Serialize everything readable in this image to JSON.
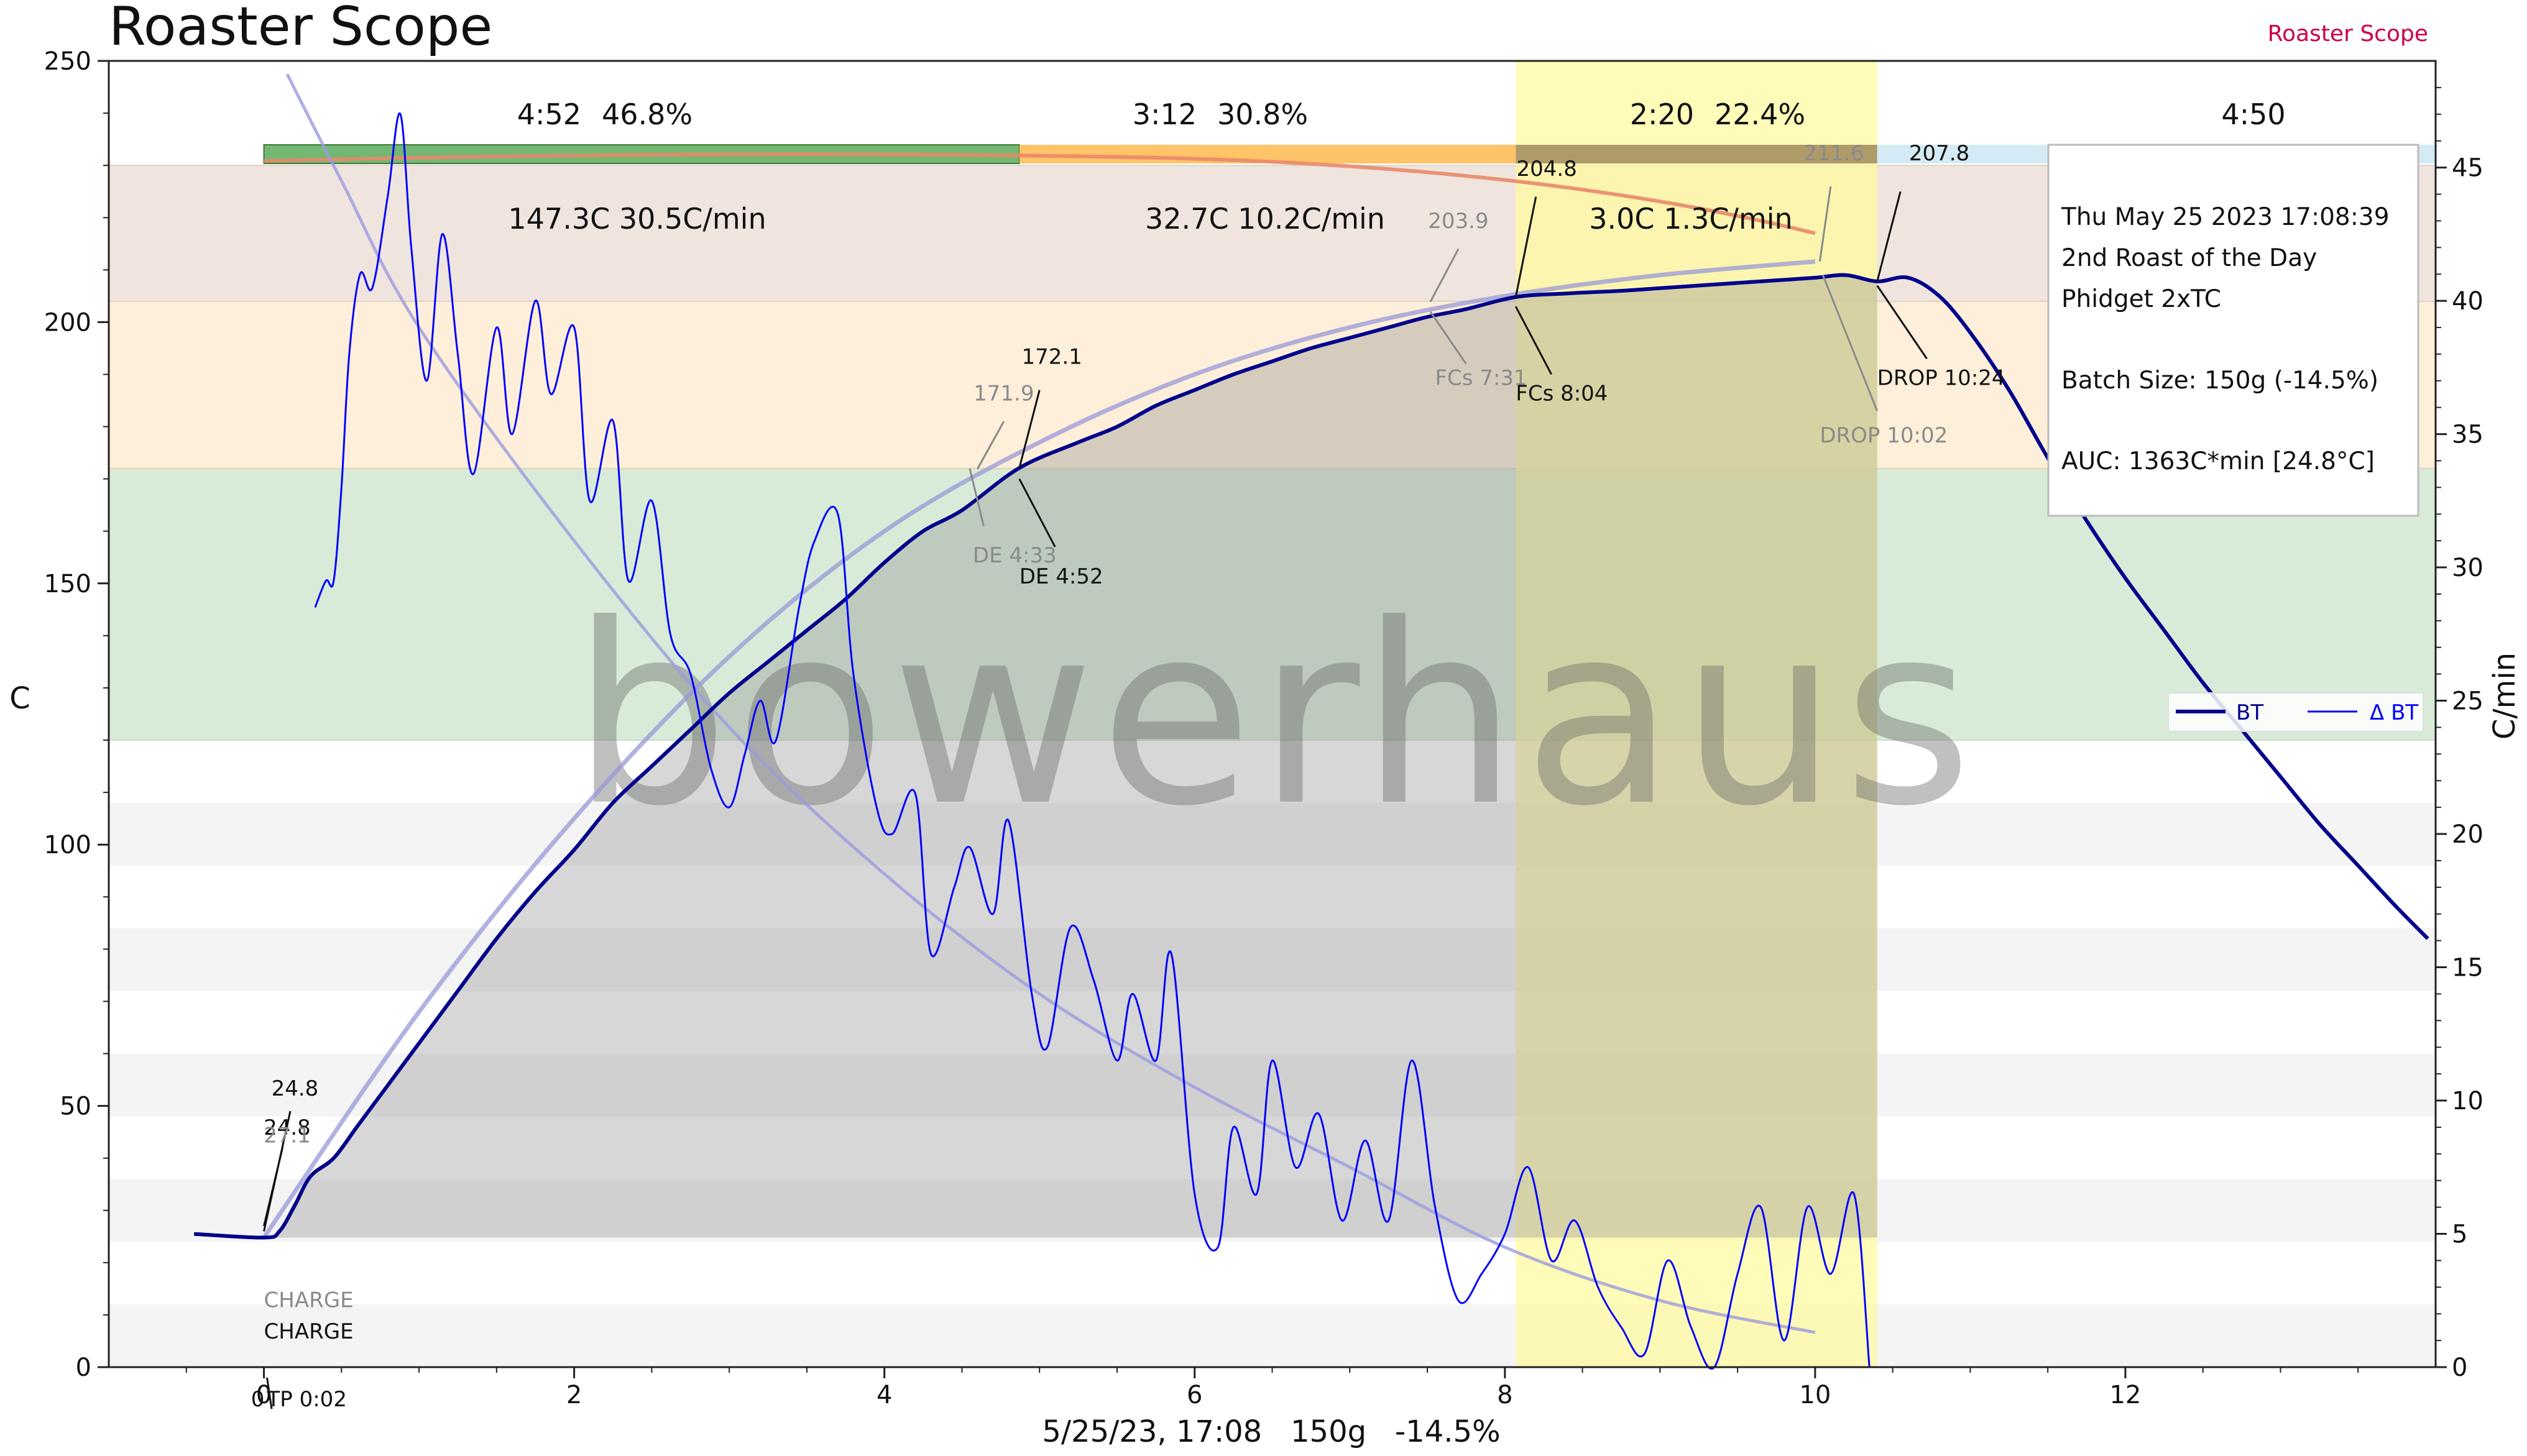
{
  "title": "Roaster Scope",
  "brand_label": "Roaster Scope",
  "watermark": "bowerhaus",
  "xlabel": "5/25/23, 17:08   150g   -14.5%",
  "ylabel_left": "C",
  "ylabel_right": "C/min",
  "colors": {
    "bt": "#00008b",
    "delta_bt": "#0000ff",
    "bt_fit": "#9898d8",
    "delta_fit": "#9b9be0",
    "brand": "#cc0044",
    "dry": "#5aaa5a",
    "maillard": "#ffb84d",
    "development": "#a08a5a",
    "cool": "#b8dcec",
    "dev_window": "#fffaa0",
    "zone_green": "#d8ebd8",
    "zone_orange": "#fdefd9",
    "zone_brown": "#efe5de"
  },
  "info_box": {
    "line1": "Thu May 25 2023 17:08:39",
    "line2": "2nd Roast of the Day",
    "line3": "Phidget 2xTC",
    "line4": "Batch Size: 150g (-14.5%)",
    "line5": "AUC: 1363C*min [24.8°C]"
  },
  "legend": {
    "bt": "BT",
    "delta_bt": "Δ BT"
  },
  "phases": [
    {
      "name": "dry",
      "time_label": "4:52",
      "pct_label": "46.8%",
      "summary": "147.3C  30.5C/min",
      "start": 0,
      "end": 4.87
    },
    {
      "name": "maillard",
      "time_label": "3:12",
      "pct_label": "30.8%",
      "summary": "32.7C  10.2C/min",
      "start": 4.87,
      "end": 8.07
    },
    {
      "name": "development",
      "time_label": "2:20",
      "pct_label": "22.4%",
      "summary": "3.0C  1.3C/min",
      "start": 8.07,
      "end": 10.4
    },
    {
      "name": "cool",
      "time_label": "4:50",
      "pct_label": "",
      "summary": "",
      "start": 10.4,
      "end": 14.0
    }
  ],
  "annotations": {
    "charge": "CHARGE",
    "charge_bg": "CHARGE",
    "tp": "TP 0:02",
    "tp_bg": "0",
    "bt_charge": "24.8",
    "bt_charge2": "24.8",
    "bt_charge_bg": "27.1",
    "de_temp": "172.1",
    "de_temp_bg": "171.9",
    "de_time": "DE 4:52",
    "de_time_bg": "DE 4:33",
    "fcs_temp": "204.8",
    "fcs_temp_bg": "203.9",
    "fcs_time": "FCs 8:04",
    "fcs_time_bg": "FCs 7:31",
    "drop_temp": "207.8",
    "drop_temp_bg": "211.6",
    "drop_time": "DROP 10:24",
    "drop_time_bg": "DROP 10:02"
  },
  "chart_data": {
    "type": "line",
    "x_axis": {
      "label": "5/25/23, 17:08   150g   -14.5%",
      "range": [
        -1.0,
        14.0
      ],
      "ticks": [
        0,
        2,
        4,
        6,
        8,
        10,
        12
      ]
    },
    "y_axis_left": {
      "label": "C",
      "range": [
        0,
        250
      ],
      "ticks": [
        0,
        50,
        100,
        150,
        200,
        250
      ]
    },
    "y_axis_right": {
      "label": "C/min",
      "range": [
        0,
        49
      ],
      "ticks": [
        0,
        5,
        10,
        15,
        20,
        25,
        30,
        35,
        40,
        45
      ]
    },
    "grid": false,
    "legend_position": "right",
    "series": [
      {
        "name": "BT",
        "axis": "left",
        "x": [
          -0.45,
          0.0,
          0.1,
          0.2,
          0.3,
          0.45,
          0.6,
          0.8,
          1.0,
          1.25,
          1.5,
          1.75,
          2.0,
          2.25,
          2.5,
          2.75,
          3.0,
          3.25,
          3.5,
          3.75,
          4.0,
          4.25,
          4.5,
          4.87,
          5.25,
          5.5,
          5.75,
          6.0,
          6.25,
          6.5,
          6.75,
          7.0,
          7.25,
          7.5,
          7.75,
          8.07,
          8.4,
          8.75,
          9.0,
          9.25,
          9.5,
          9.75,
          10.0,
          10.2,
          10.4,
          10.6,
          10.8,
          11.0,
          11.25,
          11.5,
          11.75,
          12.0,
          12.25,
          12.5,
          12.75,
          13.0,
          13.25,
          13.5,
          13.75,
          13.95
        ],
        "y": [
          25.5,
          24.8,
          26.0,
          31.0,
          36.5,
          40.0,
          46.0,
          54.0,
          62.0,
          72.0,
          82.0,
          91.0,
          99.0,
          108.0,
          115.0,
          122.0,
          129.0,
          135.0,
          141.0,
          147.0,
          154.0,
          160.0,
          164.0,
          172.1,
          177.0,
          180.0,
          184.0,
          187.0,
          190.0,
          192.5,
          195.0,
          197.0,
          199.0,
          201.0,
          202.5,
          204.8,
          205.5,
          206.0,
          206.5,
          207.0,
          207.5,
          208.0,
          208.5,
          209.0,
          207.8,
          208.5,
          205.0,
          198.0,
          187.0,
          174.0,
          162.0,
          151.0,
          141.0,
          131.0,
          122.0,
          113.0,
          104.0,
          96.0,
          88.0,
          82.0
        ]
      },
      {
        "name": "Δ BT",
        "axis": "right",
        "x": [
          0.33,
          0.4,
          0.45,
          0.5,
          0.55,
          0.62,
          0.7,
          0.8,
          0.88,
          0.95,
          1.05,
          1.15,
          1.25,
          1.35,
          1.5,
          1.6,
          1.75,
          1.85,
          2.0,
          2.1,
          2.25,
          2.35,
          2.5,
          2.62,
          2.75,
          2.88,
          3.0,
          3.1,
          3.2,
          3.3,
          3.45,
          3.55,
          3.7,
          3.8,
          3.95,
          4.05,
          4.2,
          4.3,
          4.45,
          4.55,
          4.7,
          4.8,
          4.95,
          5.05,
          5.2,
          5.35,
          5.5,
          5.6,
          5.75,
          5.85,
          6.0,
          6.15,
          6.25,
          6.4,
          6.5,
          6.65,
          6.8,
          6.95,
          7.1,
          7.25,
          7.4,
          7.55,
          7.7,
          7.85,
          8.0,
          8.15,
          8.3,
          8.45,
          8.6,
          8.75,
          8.9,
          9.05,
          9.2,
          9.35,
          9.5,
          9.65,
          9.8,
          9.95,
          10.1,
          10.25,
          10.35
        ],
        "y": [
          28.5,
          29.5,
          29.5,
          33.0,
          38.0,
          41.0,
          40.5,
          44.0,
          47.0,
          42.0,
          37.0,
          42.5,
          38.0,
          33.5,
          39.0,
          35.0,
          40.0,
          36.5,
          39.0,
          32.5,
          35.5,
          29.5,
          32.5,
          27.5,
          26.0,
          22.5,
          21.0,
          23.0,
          25.0,
          23.5,
          28.5,
          31.0,
          32.0,
          26.0,
          21.0,
          20.0,
          21.5,
          15.5,
          18.0,
          19.5,
          17.0,
          20.5,
          14.0,
          12.0,
          16.5,
          14.5,
          11.5,
          14.0,
          11.5,
          15.5,
          6.5,
          4.5,
          9.0,
          6.5,
          11.5,
          7.5,
          9.5,
          5.5,
          8.5,
          5.5,
          11.5,
          6.0,
          2.5,
          3.5,
          5.0,
          7.5,
          4.0,
          5.5,
          3.0,
          1.5,
          0.5,
          4.0,
          1.5,
          0.0,
          3.5,
          6.0,
          1.0,
          6.0,
          3.5,
          6.5,
          0.0
        ]
      },
      {
        "name": "",
        "axis": "left",
        "x": [
          0.0,
          1.0,
          2.0,
          3.0,
          4.0,
          5.0,
          6.0,
          7.0,
          8.0,
          9.0,
          10.0
        ],
        "y": [
          24.8,
          68.0,
          105.0,
          136.0,
          160.0,
          177.0,
          190.0,
          199.0,
          205.0,
          209.0,
          211.6
        ]
      },
      {
        "name": "",
        "axis": "right",
        "x": [
          0.15,
          0.5,
          1.0,
          2.0,
          3.0,
          4.0,
          5.0,
          6.0,
          7.0,
          8.0,
          9.0,
          10.0
        ],
        "y": [
          48.5,
          44.5,
          39.0,
          31.0,
          24.0,
          18.5,
          14.0,
          10.5,
          7.5,
          4.5,
          2.5,
          1.3
        ]
      }
    ],
    "zones": [
      {
        "name": "green",
        "y0": 120,
        "y1": 172
      },
      {
        "name": "orange",
        "y0": 172,
        "y1": 204
      },
      {
        "name": "brown",
        "y0": 204,
        "y1": 230
      }
    ]
  }
}
